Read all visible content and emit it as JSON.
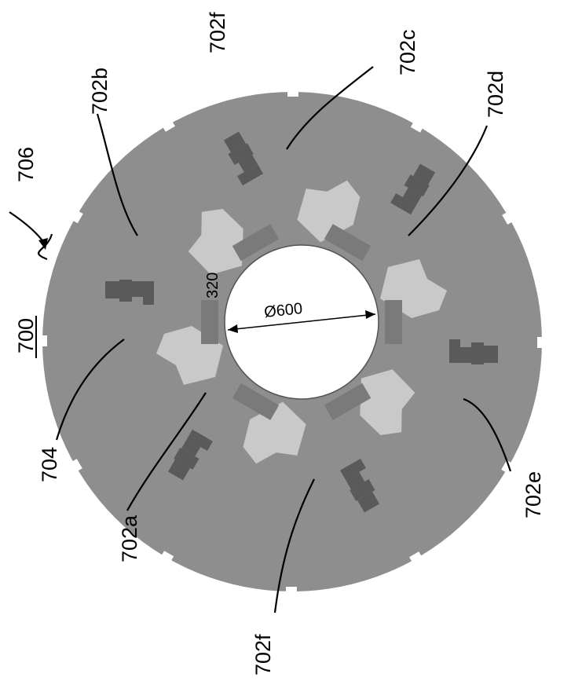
{
  "figure": {
    "number": "700",
    "assembly_ref": "706",
    "labels": {
      "ref_704": "704",
      "ref_702a": "702a",
      "ref_702b": "702b",
      "ref_702c": "702c",
      "ref_702d": "702d",
      "ref_702e": "702e",
      "ref_702f_top": "702f",
      "ref_702f_bottom": "702f"
    },
    "dimensions": {
      "bore": "Ø600",
      "slot": "320"
    }
  },
  "colors": {
    "disc": "#8e8e8e",
    "pole_light": "#c9c9c9",
    "coil": "#5a5a5a",
    "bore": "#ffffff",
    "ink": "#000000"
  }
}
